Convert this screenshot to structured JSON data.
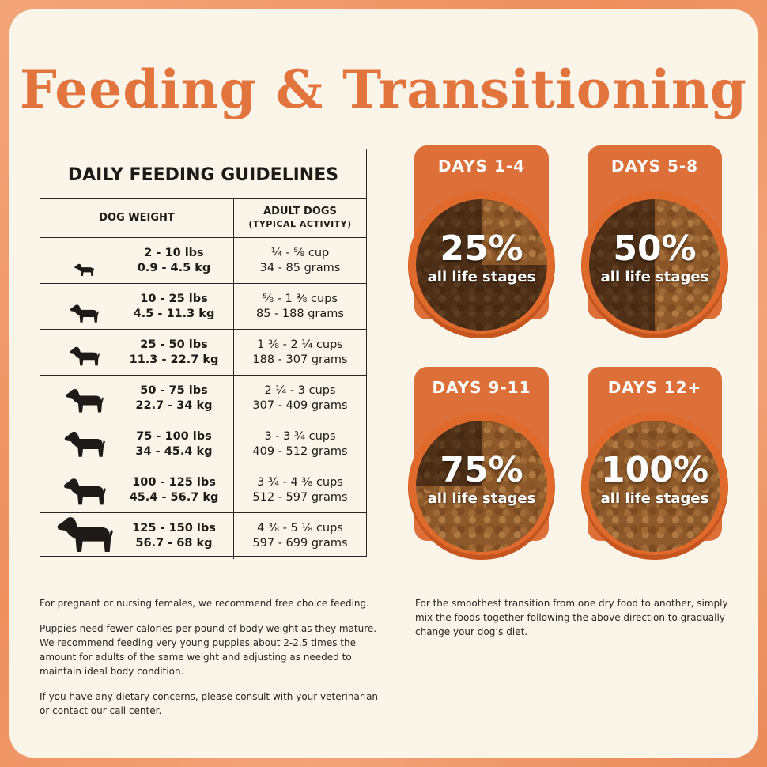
{
  "title": "Feeding & Transitioning",
  "table": {
    "title": "DAILY FEEDING GUIDELINES",
    "col1": "DOG WEIGHT",
    "col2_line1": "ADULT DOGS",
    "col2_line2": "(TYPICAL ACTIVITY)",
    "rows": [
      {
        "icon": "chihuahua-icon",
        "lbs": "2 - 10 lbs",
        "kg": "0.9 - 4.5 kg",
        "cups": "¼ - ⅝ cup",
        "grams": "34 - 85 grams"
      },
      {
        "icon": "bulldog-icon",
        "lbs": "10 - 25 lbs",
        "kg": "4.5 - 11.3 kg",
        "cups": "⅝ - 1 ⅜ cups",
        "grams": "85 - 188 grams"
      },
      {
        "icon": "spitz-icon",
        "lbs": "25 - 50 lbs",
        "kg": "11.3 - 22.7 kg",
        "cups": "1 ⅜ - 2 ¼ cups",
        "grams": "188 - 307 grams"
      },
      {
        "icon": "shepherd-icon",
        "lbs": "50 - 75 lbs",
        "kg": "22.7 - 34 kg",
        "cups": "2 ¼ - 3 cups",
        "grams": "307 - 409 grams"
      },
      {
        "icon": "great-dane-icon",
        "lbs": "75 - 100 lbs",
        "kg": "34 - 45.4 kg",
        "cups": "3 - 3 ¾ cups",
        "grams": "409 - 512 grams"
      },
      {
        "icon": "retriever-icon",
        "lbs": "100 - 125 lbs",
        "kg": "45.4 - 56.7 kg",
        "cups": "3 ¾ - 4 ⅜ cups",
        "grams": "512 - 597 grams"
      },
      {
        "icon": "newfoundland-icon",
        "lbs": "125 - 150 lbs",
        "kg": "56.7 - 68 kg",
        "cups": "4 ⅜ - 5 ⅛ cups",
        "grams": "597 - 699 grams"
      }
    ]
  },
  "transition": [
    {
      "days": "DAYS 1-4",
      "percent": "25%",
      "stage": "all life stages",
      "fraction": 0.25
    },
    {
      "days": "DAYS 5-8",
      "percent": "50%",
      "stage": "all life stages",
      "fraction": 0.5
    },
    {
      "days": "DAYS 9-11",
      "percent": "75%",
      "stage": "all life stages",
      "fraction": 0.75
    },
    {
      "days": "DAYS 12+",
      "percent": "100%",
      "stage": "all life stages",
      "fraction": 1.0
    }
  ],
  "notes_left": [
    "For pregnant or nursing females, we recommend free choice feeding.",
    "Puppies need fewer calories per pound of body weight as they mature. We recommend feeding very young puppies about 2-2.5 times the amount for adults of the same weight and adjusting as needed to maintain ideal body condition.",
    "If you have any dietary concerns, please consult with your veterinarian or contact our call center."
  ],
  "notes_right": "For the smoothest transition from one dry food to another, simply mix the foods together following the above direction to gradually change your dog’s diet.",
  "colors": {
    "accent": "#e2743e",
    "tab": "#dd6f38",
    "bowl": "#e06a2c"
  }
}
